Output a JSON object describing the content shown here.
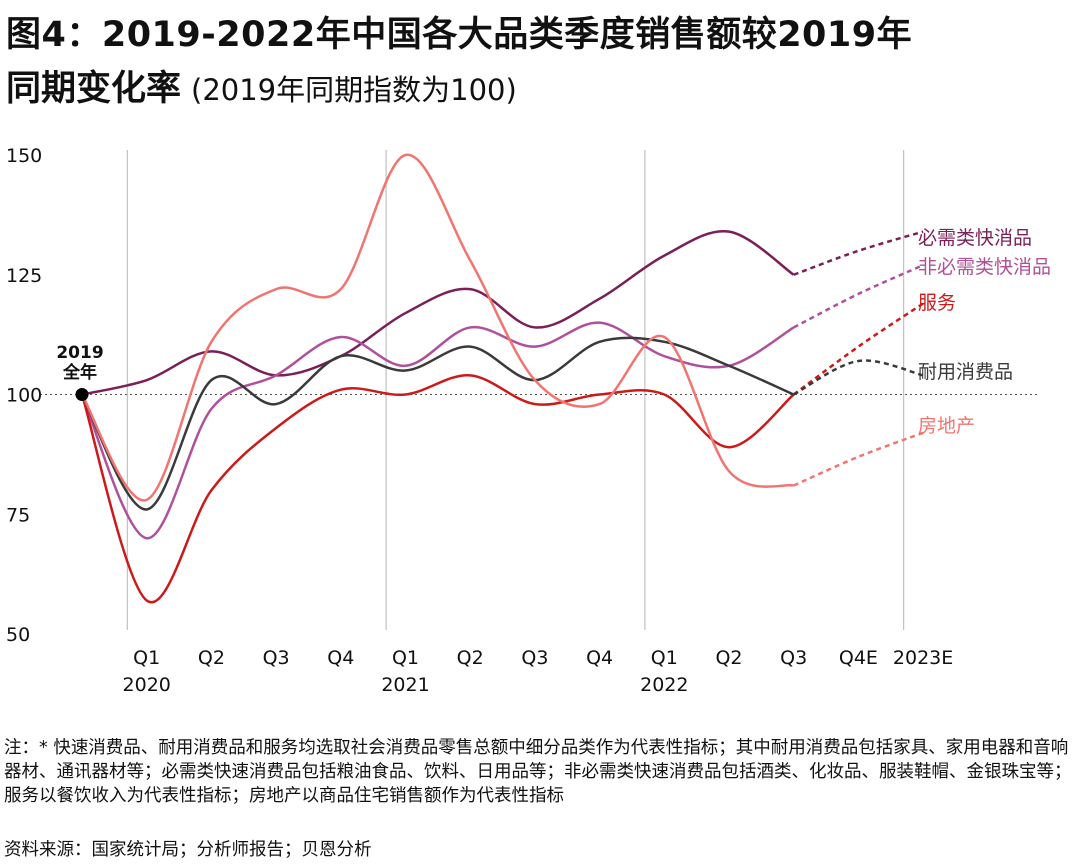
{
  "title": {
    "line1": "图4：2019-2022年中国各大品类季度销售额较2019年",
    "line2_bold": "同期变化率",
    "line2_sub": "(2019年同期指数为100)"
  },
  "chart_data": {
    "type": "line",
    "title": "图4：2019-2022年中国各大品类季度销售额较2019年同期变化率",
    "subtitle": "(2019年同期指数为100)",
    "ylim": [
      50,
      150
    ],
    "yticks": [
      50,
      75,
      100,
      125,
      150
    ],
    "x": [
      "2019全年",
      "Q1 2020",
      "Q2 2020",
      "Q3 2020",
      "Q4 2020",
      "Q1 2021",
      "Q2 2021",
      "Q3 2021",
      "Q4 2021",
      "Q1 2022",
      "Q2 2022",
      "Q3 2022",
      "Q4E",
      "2023E"
    ],
    "x_tick_labels": [
      "Q1",
      "Q2",
      "Q3",
      "Q4",
      "Q1",
      "Q2",
      "Q3",
      "Q4",
      "Q1",
      "Q2",
      "Q3",
      "Q4E",
      "2023E"
    ],
    "year_labels": [
      "2020",
      "2021",
      "2022"
    ],
    "start_label": "2019\n全年",
    "baseline": 100,
    "series": [
      {
        "name": "必需类快消品",
        "color": "#7a1f58",
        "values": [
          100,
          103,
          109,
          104,
          108,
          117,
          122,
          114,
          120,
          129,
          134,
          125,
          130,
          134
        ]
      },
      {
        "name": "非必需类快消品",
        "color": "#b0509a",
        "values": [
          100,
          70,
          97,
          104,
          112,
          106,
          114,
          110,
          115,
          108,
          106,
          114,
          121,
          127
        ]
      },
      {
        "name": "服务",
        "color": "#cc1a1a",
        "values": [
          100,
          57,
          80,
          93,
          101,
          100,
          104,
          98,
          100,
          100,
          89,
          100,
          110,
          119
        ]
      },
      {
        "name": "耐用消费品",
        "color": "#3a3a3a",
        "values": [
          100,
          76,
          103,
          98,
          108,
          105,
          110,
          103,
          111,
          111,
          106,
          100,
          107,
          104
        ]
      },
      {
        "name": "房地产",
        "color": "#f07570",
        "values": [
          100,
          78,
          111,
          122,
          122,
          150,
          128,
          103,
          98,
          112,
          84,
          81,
          87,
          92
        ]
      }
    ]
  },
  "notes": "注：* 快速消费品、耐用消费品和服务均选取社会消费品零售总额中细分品类作为代表性指标；其中耐用消费品包括家具、家用电器和音响器材、通讯器材等；必需类快速消费品包括粮油食品、饮料、日用品等；非必需类快速消费品包括酒类、化妆品、服装鞋帽、金银珠宝等；服务以餐饮收入为代表性指标；房地产以商品住宅销售额作为代表性指标",
  "source": "资料来源：国家统计局；分析师报告；贝恩分析"
}
